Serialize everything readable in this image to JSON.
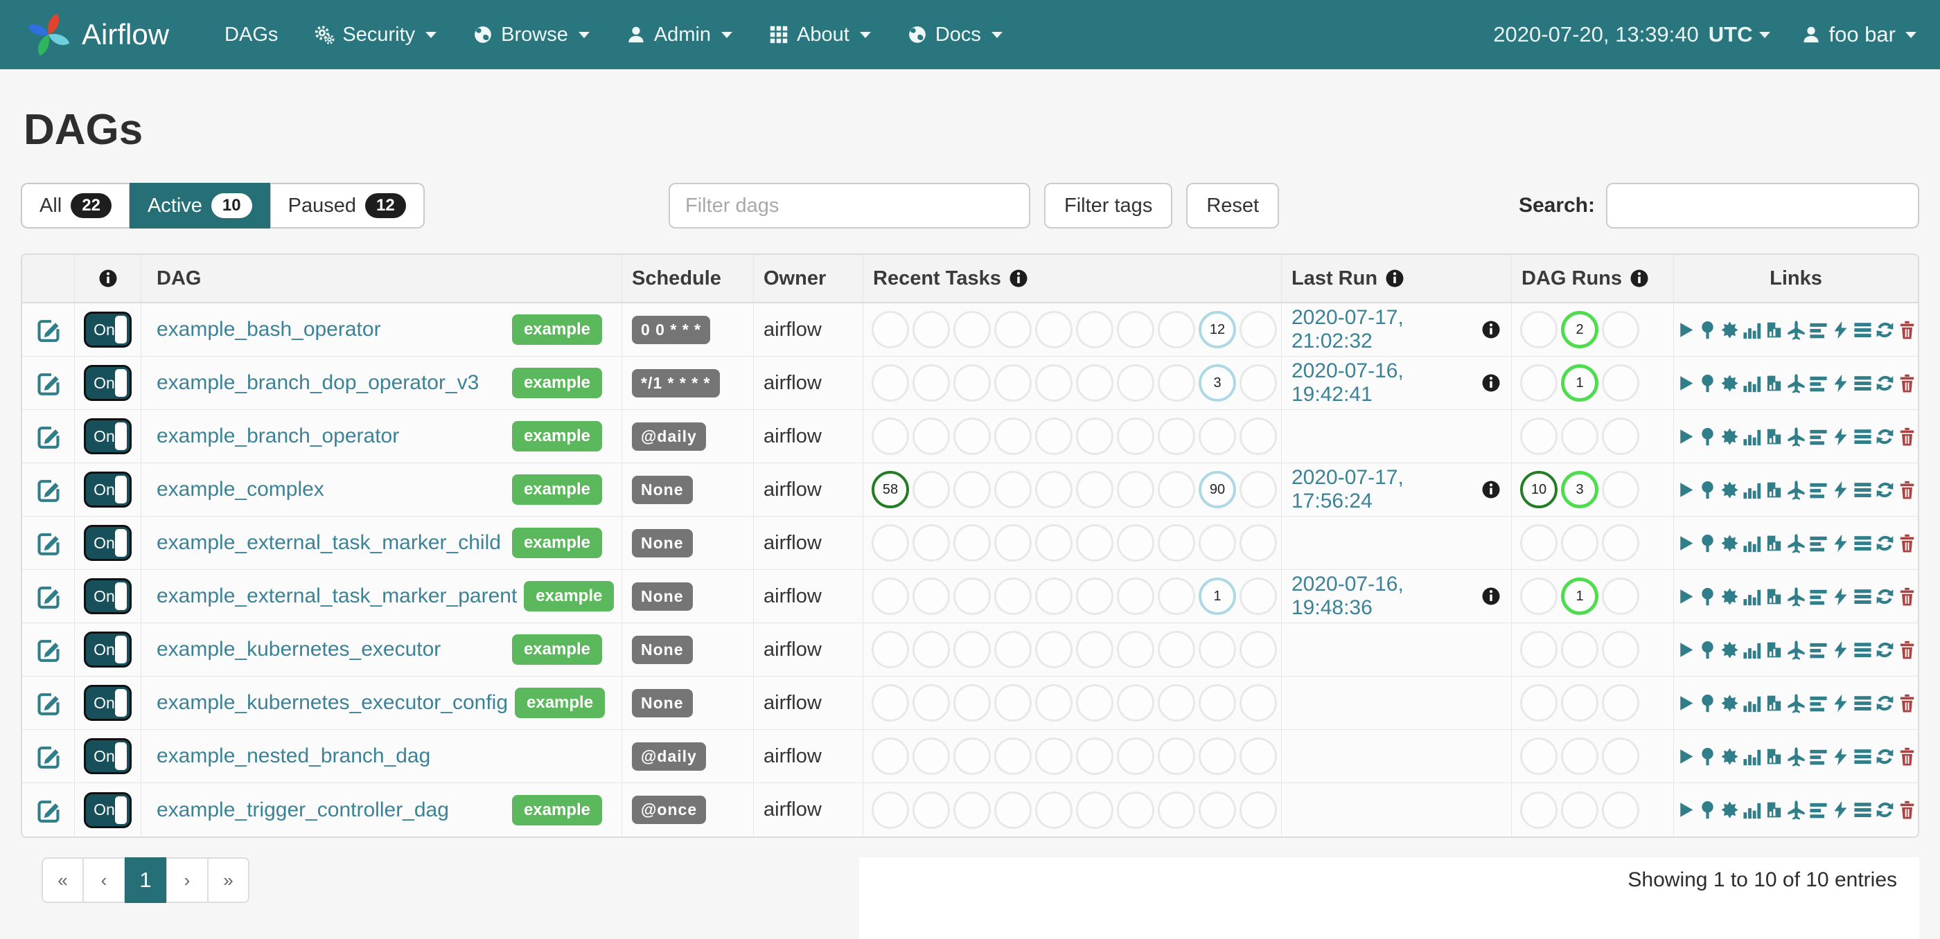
{
  "navbar": {
    "brand": "Airflow",
    "items": [
      {
        "label": "DAGs",
        "icon": null,
        "caret": false
      },
      {
        "label": "Security",
        "icon": "cogs-icon",
        "caret": true
      },
      {
        "label": "Browse",
        "icon": "globe-icon",
        "caret": true
      },
      {
        "label": "Admin",
        "icon": "user-icon",
        "caret": true
      },
      {
        "label": "About",
        "icon": "grid-icon",
        "caret": true
      },
      {
        "label": "Docs",
        "icon": "globe-icon",
        "caret": true
      }
    ],
    "clock": {
      "datetime": "2020-07-20, 13:39:40",
      "tz": "UTC"
    },
    "user": "foo bar"
  },
  "page": {
    "title": "DAGs"
  },
  "tabs": [
    {
      "label": "All",
      "count": "22",
      "active": false
    },
    {
      "label": "Active",
      "count": "10",
      "active": true
    },
    {
      "label": "Paused",
      "count": "12",
      "active": false
    }
  ],
  "filters": {
    "filter_dags_placeholder": "Filter dags",
    "filter_tags_label": "Filter tags",
    "reset_label": "Reset",
    "search_label": "Search:"
  },
  "table": {
    "headers": {
      "dag": "DAG",
      "schedule": "Schedule",
      "owner": "Owner",
      "recent_tasks": "Recent Tasks",
      "last_run": "Last Run",
      "dag_runs": "DAG Runs",
      "links": "Links"
    },
    "toggle_on_label": "On",
    "recent_task_slots": 10,
    "dag_run_slots": 3,
    "links_icons": [
      "trigger-dag-icon",
      "tree-view-icon",
      "graph-view-icon",
      "task-duration-icon",
      "task-tries-icon",
      "landing-times-icon",
      "gantt-icon",
      "code-icon",
      "details-icon",
      "refresh-icon",
      "delete-icon"
    ],
    "rows": [
      {
        "name": "example_bash_operator",
        "tag": "example",
        "schedule": "0 0 * * *",
        "owner": "airflow",
        "recent_tasks": [
          {
            "slot": 8,
            "count": "12",
            "state": "none"
          }
        ],
        "last_run": "2020-07-17, 21:02:32",
        "dag_runs": [
          {
            "slot": 1,
            "count": "2",
            "state": "running"
          }
        ]
      },
      {
        "name": "example_branch_dop_operator_v3",
        "tag": "example",
        "schedule": "*/1 * * * *",
        "owner": "airflow",
        "recent_tasks": [
          {
            "slot": 8,
            "count": "3",
            "state": "none"
          }
        ],
        "last_run": "2020-07-16, 19:42:41",
        "dag_runs": [
          {
            "slot": 1,
            "count": "1",
            "state": "running"
          }
        ]
      },
      {
        "name": "example_branch_operator",
        "tag": "example",
        "schedule": "@daily",
        "owner": "airflow",
        "recent_tasks": [],
        "last_run": "",
        "dag_runs": []
      },
      {
        "name": "example_complex",
        "tag": "example",
        "schedule": "None",
        "owner": "airflow",
        "recent_tasks": [
          {
            "slot": 0,
            "count": "58",
            "state": "success"
          },
          {
            "slot": 8,
            "count": "90",
            "state": "none"
          }
        ],
        "last_run": "2020-07-17, 17:56:24",
        "dag_runs": [
          {
            "slot": 0,
            "count": "10",
            "state": "success"
          },
          {
            "slot": 1,
            "count": "3",
            "state": "running"
          }
        ]
      },
      {
        "name": "example_external_task_marker_child",
        "tag": "example",
        "schedule": "None",
        "owner": "airflow",
        "recent_tasks": [],
        "last_run": "",
        "dag_runs": []
      },
      {
        "name": "example_external_task_marker_parent",
        "tag": "example",
        "schedule": "None",
        "owner": "airflow",
        "recent_tasks": [
          {
            "slot": 8,
            "count": "1",
            "state": "none"
          }
        ],
        "last_run": "2020-07-16, 19:48:36",
        "dag_runs": [
          {
            "slot": 1,
            "count": "1",
            "state": "running"
          }
        ]
      },
      {
        "name": "example_kubernetes_executor",
        "tag": "example",
        "schedule": "None",
        "owner": "airflow",
        "recent_tasks": [],
        "last_run": "",
        "dag_runs": []
      },
      {
        "name": "example_kubernetes_executor_config",
        "tag": "example",
        "schedule": "None",
        "owner": "airflow",
        "recent_tasks": [],
        "last_run": "",
        "dag_runs": []
      },
      {
        "name": "example_nested_branch_dag",
        "tag": null,
        "schedule": "@daily",
        "owner": "airflow",
        "recent_tasks": [],
        "last_run": "",
        "dag_runs": []
      },
      {
        "name": "example_trigger_controller_dag",
        "tag": "example",
        "schedule": "@once",
        "owner": "airflow",
        "recent_tasks": [],
        "last_run": "",
        "dag_runs": []
      }
    ]
  },
  "pagination": {
    "first": "«",
    "prev": "‹",
    "pages": [
      "1"
    ],
    "active_page": "1",
    "next": "›",
    "last": "»"
  },
  "footer": {
    "showing": "Showing 1 to 10 of 10 entries"
  },
  "colors": {
    "navbar_teal": "#2a767e",
    "active_tab_teal": "#266f77",
    "link_teal": "#3c8296",
    "icon_teal": "#2f7e8a",
    "tag_green": "#5cb85c",
    "schedule_gray": "#757575",
    "state_success_green": "#247c24",
    "state_running_green": "#4fdc4f",
    "state_none_blue": "#aed9e4",
    "delete_red": "#a94442",
    "badge_black": "#1e1e1e"
  }
}
